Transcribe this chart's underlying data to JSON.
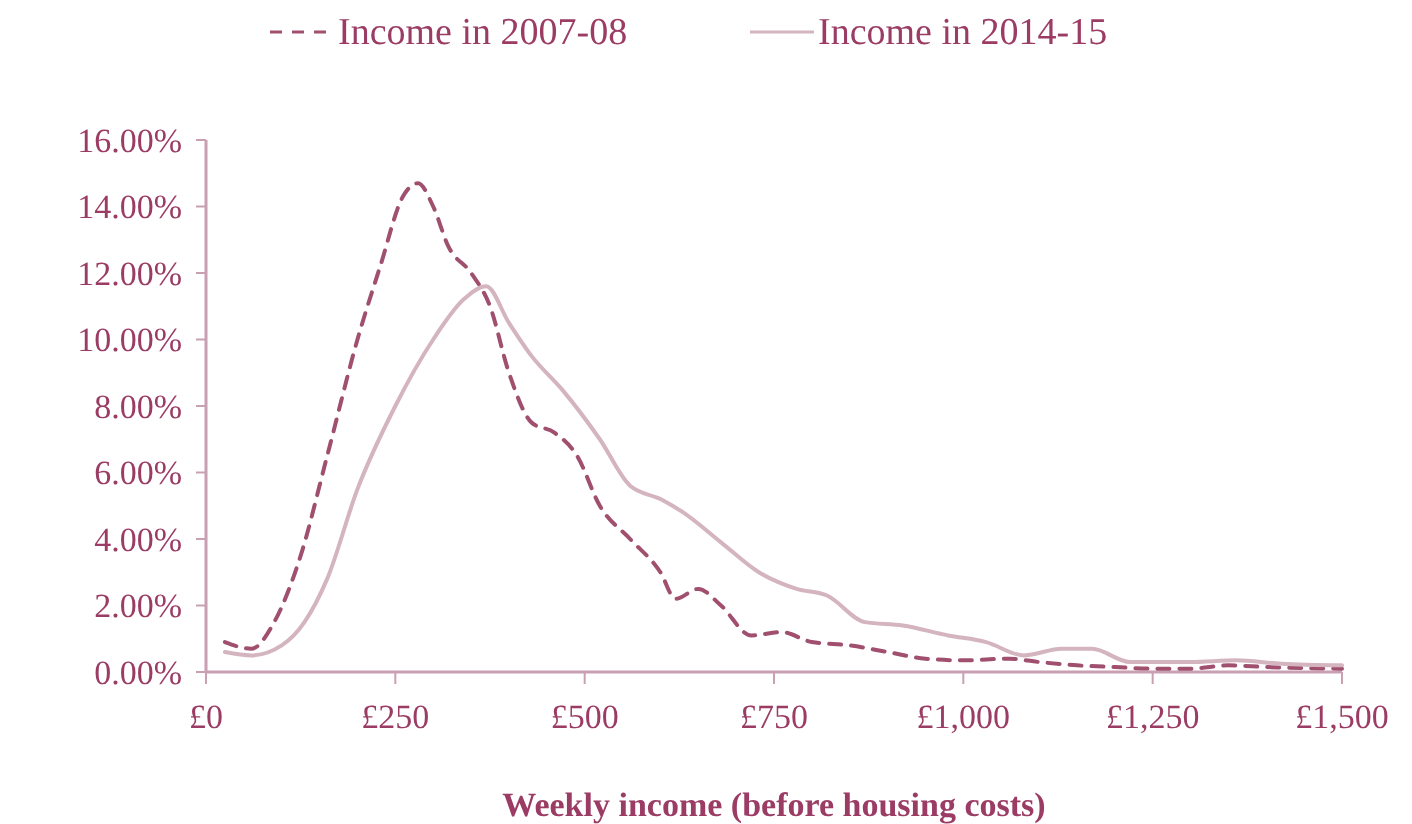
{
  "chart_data": {
    "type": "line",
    "xlabel": "Weekly income (before housing costs)",
    "legend": "top",
    "marker": "none",
    "xlim": [
      0,
      1500
    ],
    "xticks": [
      {
        "value": 0,
        "label": "£0"
      },
      {
        "value": 250,
        "label": "£250"
      },
      {
        "value": 500,
        "label": "£500"
      },
      {
        "value": 750,
        "label": "£750"
      },
      {
        "value": 1000,
        "label": "£1,000"
      },
      {
        "value": 1250,
        "label": "£1,250"
      },
      {
        "value": 1500,
        "label": "£1,500"
      }
    ],
    "ylim": [
      0,
      16
    ],
    "yticks": [
      {
        "value": 0,
        "label": "0.00%"
      },
      {
        "value": 2,
        "label": "2.00%"
      },
      {
        "value": 4,
        "label": "4.00%"
      },
      {
        "value": 6,
        "label": "6.00%"
      },
      {
        "value": 8,
        "label": "8.00%"
      },
      {
        "value": 10,
        "label": "10.00%"
      },
      {
        "value": 12,
        "label": "12.00%"
      },
      {
        "value": 14,
        "label": "14.00%"
      },
      {
        "value": 16,
        "label": "16.00%"
      }
    ],
    "series": [
      {
        "name": "Income in 2007-08",
        "color": "#a0506e",
        "line_style": "dashed",
        "x": [
          25,
          60,
          90,
          125,
          160,
          200,
          230,
          260,
          280,
          300,
          320,
          350,
          375,
          400,
          430,
          460,
          490,
          520,
          560,
          600,
          620,
          650,
          680,
          720,
          760,
          800,
          850,
          900,
          950,
          1000,
          1060,
          1100,
          1150,
          1200,
          1250,
          1300,
          1350,
          1400,
          1500
        ],
        "values": [
          0.9,
          0.7,
          1.5,
          3.5,
          6.5,
          10,
          12.2,
          14.3,
          14.7,
          14,
          12.8,
          12,
          11,
          9,
          7.5,
          7.2,
          6.5,
          5,
          4,
          3,
          2.2,
          2.5,
          2,
          1.1,
          1.2,
          0.9,
          0.8,
          0.6,
          0.4,
          0.35,
          0.4,
          0.3,
          0.2,
          0.15,
          0.1,
          0.1,
          0.2,
          0.15,
          0.1
        ]
      },
      {
        "name": "Income in 2014-15",
        "color": "#d4b4be",
        "line_style": "solid",
        "x": [
          25,
          60,
          100,
          130,
          160,
          200,
          250,
          300,
          340,
          370,
          400,
          430,
          470,
          520,
          560,
          600,
          630,
          680,
          730,
          780,
          820,
          870,
          920,
          980,
          1030,
          1080,
          1130,
          1170,
          1220,
          1300,
          1360,
          1420,
          1500
        ],
        "values": [
          0.6,
          0.5,
          0.8,
          1.5,
          2.8,
          5.5,
          8,
          10,
          11.2,
          11.6,
          10.5,
          9.5,
          8.5,
          7,
          5.6,
          5.2,
          4.8,
          3.9,
          3,
          2.5,
          2.3,
          1.5,
          1.4,
          1.1,
          0.9,
          0.5,
          0.7,
          0.7,
          0.3,
          0.3,
          0.35,
          0.25,
          0.2
        ]
      }
    ]
  }
}
